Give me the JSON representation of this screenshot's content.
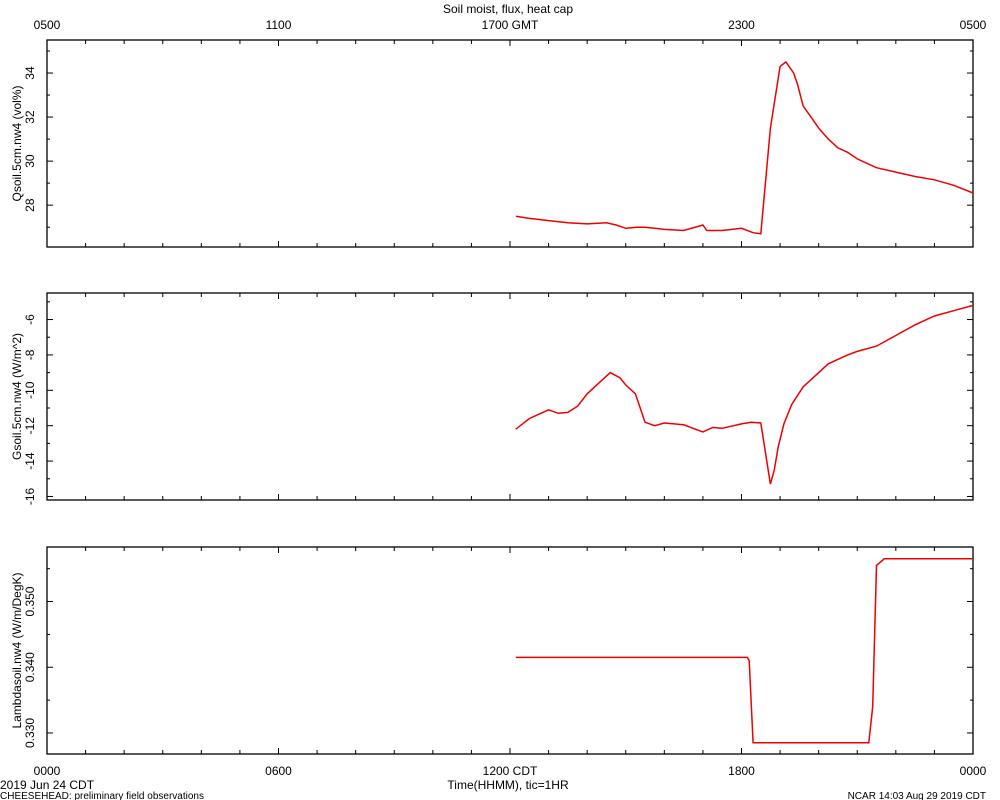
{
  "chart_data": {
    "type": "line",
    "title": "Soil moist, flux, heat cap",
    "top_axis": {
      "unit_suffix": "GMT",
      "labels": [
        "0500",
        "1100",
        "1700 GMT",
        "2300",
        "0500"
      ]
    },
    "bottom_axis": {
      "labels": [
        "0000",
        "0600",
        "1200 CDT",
        "1800",
        "0000"
      ],
      "xlabel": "Time(HHMM), tic=1HR",
      "xlim_hours": [
        0,
        24
      ]
    },
    "footer": {
      "date": "2019 Jun 24 CDT",
      "project": "CHEESEHEAD: preliminary field observations",
      "credit": "NCAR 14:03 Aug 29 2019 CDT"
    },
    "panels": [
      {
        "ylabel": "Qsoil.5cm.nw4 (vol%)",
        "ylim": [
          26.1,
          35.5
        ],
        "yticks": [
          "28",
          "30",
          "32",
          "34"
        ],
        "series_color": "#ee0000",
        "x": [
          12.15,
          12.5,
          13.0,
          13.5,
          14.0,
          14.5,
          14.75,
          15.0,
          15.3,
          15.5,
          15.75,
          16.0,
          16.5,
          17.0,
          17.1,
          17.3,
          17.5,
          18.0,
          18.3,
          18.5,
          18.75,
          19.0,
          19.15,
          19.35,
          19.45,
          19.6,
          19.8,
          20.0,
          20.25,
          20.5,
          20.75,
          21.0,
          21.25,
          21.5,
          22.0,
          22.5,
          23.0,
          23.5,
          24.0
        ],
        "values": [
          27.5,
          27.4,
          27.3,
          27.2,
          27.15,
          27.2,
          27.1,
          26.95,
          27.0,
          27.0,
          26.95,
          26.9,
          26.85,
          27.1,
          26.85,
          26.85,
          26.85,
          26.95,
          26.75,
          26.7,
          31.5,
          34.3,
          34.5,
          34.0,
          33.5,
          32.5,
          32.0,
          31.5,
          31.0,
          30.6,
          30.4,
          30.1,
          29.9,
          29.7,
          29.5,
          29.3,
          29.15,
          28.9,
          28.55
        ]
      },
      {
        "ylabel": "Gsoil.5cm.nw4 (W/m^2)",
        "ylim": [
          -16.2,
          -4.5
        ],
        "yticks": [
          "-6",
          "-8",
          "-10",
          "-12",
          "-14",
          "-16"
        ],
        "series_color": "#ee0000",
        "x": [
          12.15,
          12.5,
          13.0,
          13.25,
          13.5,
          13.75,
          14.0,
          14.3,
          14.6,
          14.85,
          15.0,
          15.25,
          15.5,
          15.75,
          16.0,
          16.25,
          16.5,
          17.0,
          17.25,
          17.5,
          18.0,
          18.25,
          18.5,
          18.75,
          18.85,
          18.95,
          19.1,
          19.3,
          19.6,
          19.9,
          20.25,
          20.75,
          21.0,
          21.5,
          22.0,
          22.5,
          23.0,
          23.5,
          24.0
        ],
        "values": [
          -12.2,
          -11.6,
          -11.1,
          -11.3,
          -11.25,
          -10.9,
          -10.2,
          -9.6,
          -9.0,
          -9.3,
          -9.7,
          -10.2,
          -11.8,
          -12.0,
          -11.85,
          -11.9,
          -11.95,
          -12.35,
          -12.1,
          -12.15,
          -11.9,
          -11.8,
          -11.85,
          -15.3,
          -14.5,
          -13.2,
          -11.9,
          -10.8,
          -9.8,
          -9.2,
          -8.5,
          -8.0,
          -7.8,
          -7.5,
          -6.9,
          -6.3,
          -5.8,
          -5.5,
          -5.2
        ]
      },
      {
        "ylabel": "Lambdasoil.nw4 (W/m/DegK)",
        "ylim": [
          0.3268,
          0.3583
        ],
        "yticks": [
          "0.330",
          "0.340",
          "0.350"
        ],
        "series_color": "#ee0000",
        "x": [
          12.15,
          15.0,
          18.15,
          18.2,
          18.3,
          19.0,
          21.3,
          21.4,
          21.5,
          21.7,
          24.0
        ],
        "values": [
          0.3415,
          0.3415,
          0.3415,
          0.341,
          0.3285,
          0.3285,
          0.3285,
          0.334,
          0.3555,
          0.3565,
          0.3565
        ]
      }
    ]
  }
}
